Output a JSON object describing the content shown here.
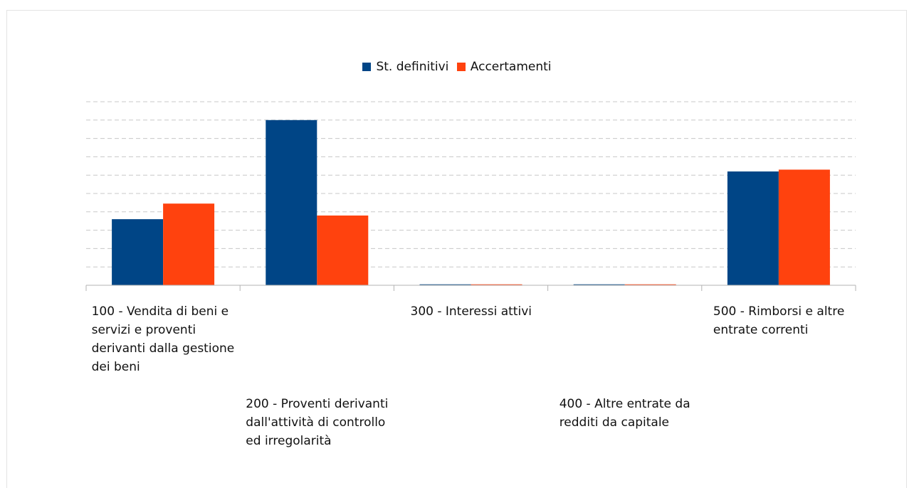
{
  "chart_data": {
    "type": "bar",
    "title": "",
    "xlabel": "",
    "ylabel": "",
    "grid": true,
    "legend_position": "top-center",
    "ylim": [
      0,
      10
    ],
    "categories": [
      "100 - Vendita di beni e servizi e proventi derivanti dalla gestione dei beni",
      "200 - Proventi derivanti dall'attività di controllo ed irregolarità",
      "300 - Interessi attivi",
      "400 - Altre entrate da redditi da capitale",
      "500 - Rimborsi e altre entrate correnti"
    ],
    "category_label_lines": [
      [
        "100 - Vendita di beni e",
        "servizi e proventi",
        "derivanti dalla gestione",
        "dei beni"
      ],
      [
        "200 - Proventi derivanti",
        "dall'attività di controllo",
        "ed irregolarità"
      ],
      [
        "300 - Interessi attivi"
      ],
      [
        "400 - Altre entrate da",
        "redditi da capitale"
      ],
      [
        "500 - Rimborsi e altre",
        "entrate correnti"
      ]
    ],
    "series": [
      {
        "name": "St. definitivi",
        "color": "#004586",
        "values": [
          3.6,
          9.0,
          0.05,
          0.05,
          6.2
        ]
      },
      {
        "name": "Accertamenti",
        "color": "#ff420e",
        "values": [
          4.45,
          3.8,
          0.05,
          0.05,
          6.3
        ]
      }
    ]
  }
}
